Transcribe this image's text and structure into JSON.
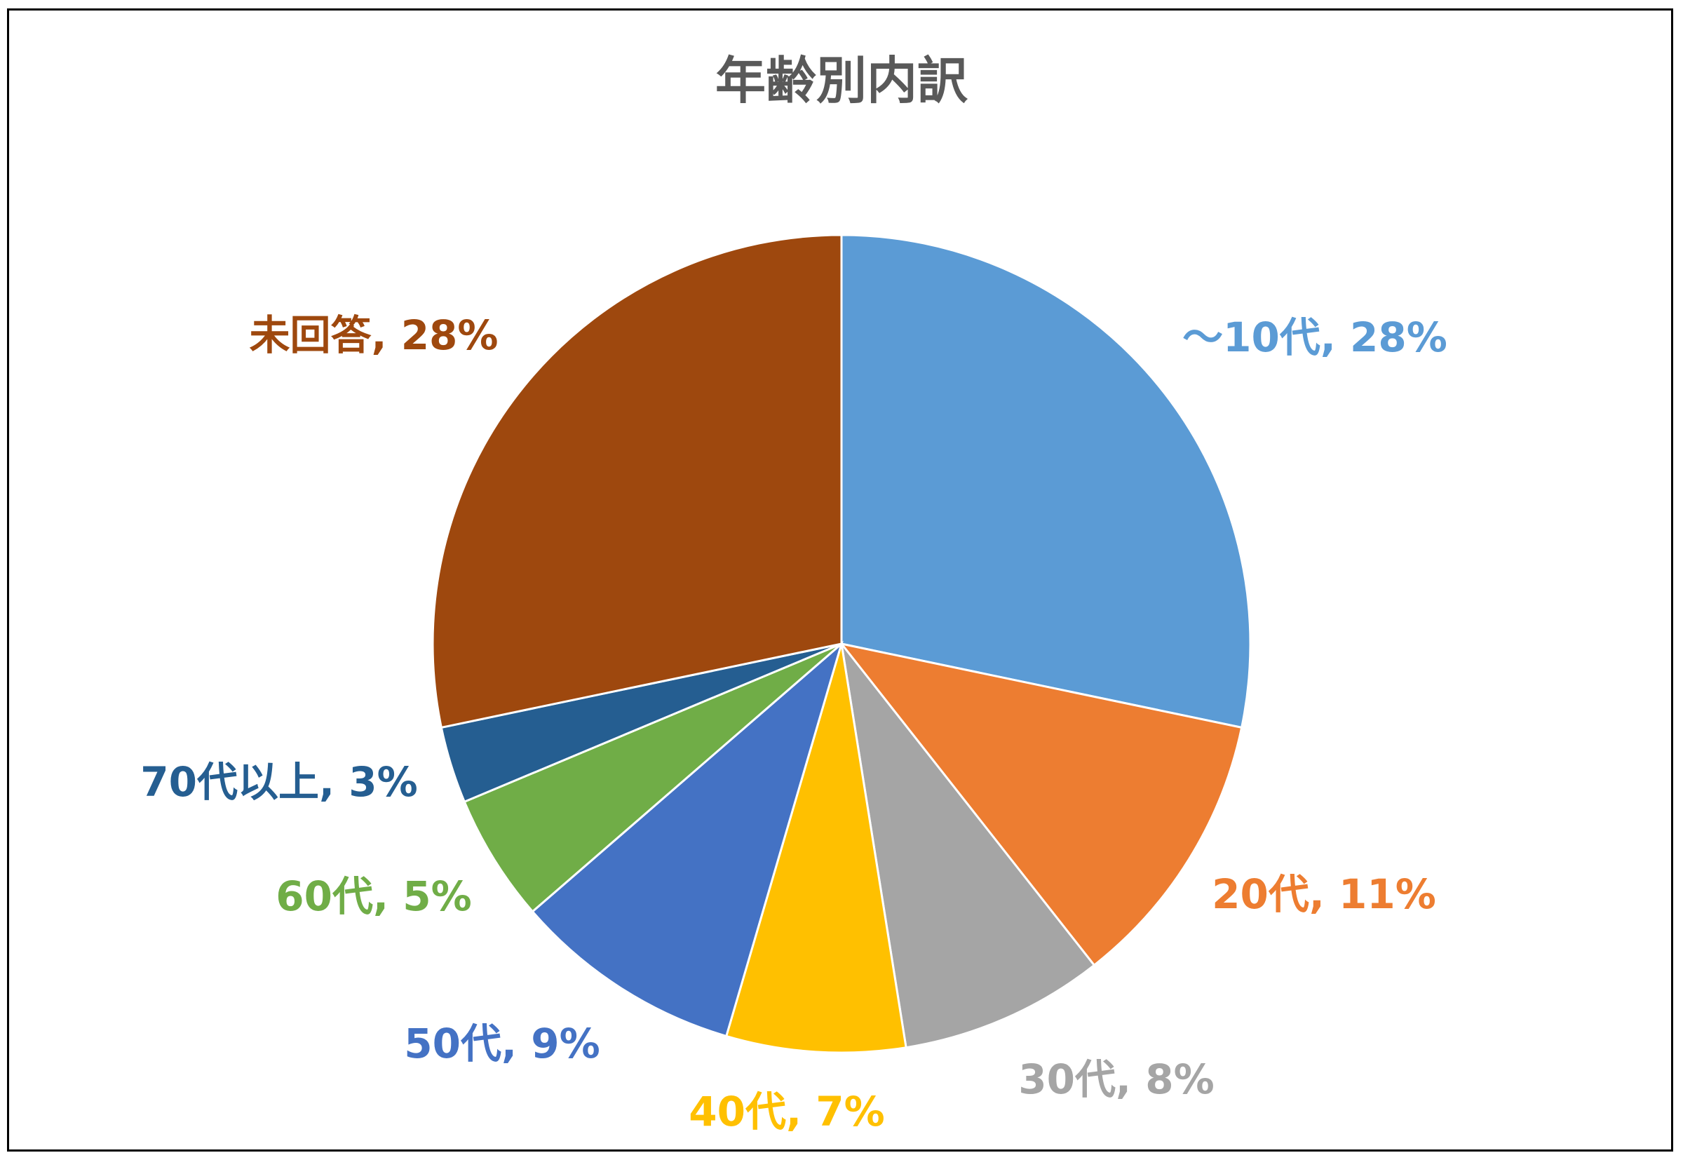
{
  "chart_data": {
    "type": "pie",
    "title": "年齢別内訳",
    "categories": [
      "～10代",
      "20代",
      "30代",
      "40代",
      "50代",
      "60代",
      "70代以上",
      "未回答"
    ],
    "values": [
      28,
      11,
      8,
      7,
      9,
      5,
      3,
      28
    ],
    "unit": "%",
    "colors": [
      "#5B9BD5",
      "#ED7D31",
      "#A5A5A5",
      "#FFC000",
      "#4472C4",
      "#70AD47",
      "#255E91",
      "#9E480E"
    ],
    "label_colors": [
      "#5B9BD5",
      "#ED7D31",
      "#A5A5A5",
      "#FFC000",
      "#4472C4",
      "#70AD47",
      "#255E91",
      "#9E480E"
    ],
    "start_angle": "12 o'clock, clockwise",
    "legend": "none (data labels outside)"
  }
}
